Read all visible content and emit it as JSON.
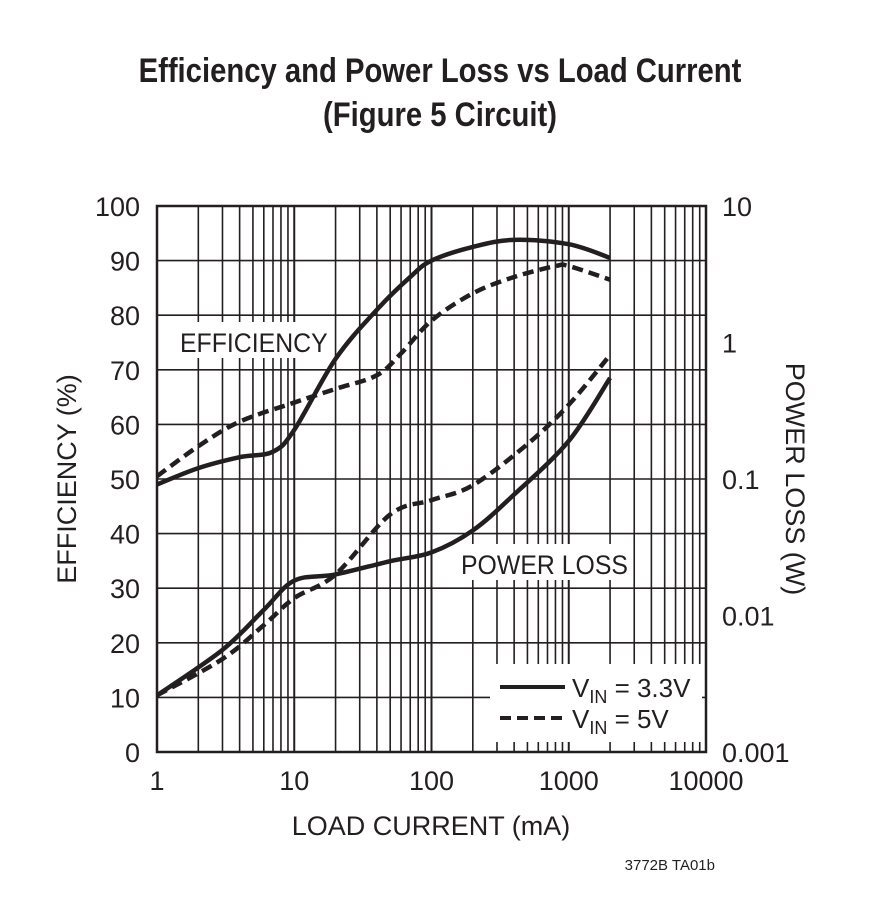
{
  "chart_data": {
    "type": "line",
    "title": "Efficiency and Power Loss vs Load Current",
    "subtitle": "(Figure 5 Circuit)",
    "xlabel": "LOAD CURRENT (mA)",
    "ylabel": "EFFICIENCY (%)",
    "y2label": "POWER LOSS (W)",
    "xscale": "log",
    "xlim": [
      1,
      10000
    ],
    "ylim": [
      0,
      100
    ],
    "y2scale": "log",
    "y2lim": [
      0.001,
      10
    ],
    "grid": true,
    "xticks": [
      "1",
      "10",
      "100",
      "1000",
      "10000"
    ],
    "yticks": [
      "0",
      "10",
      "20",
      "30",
      "40",
      "50",
      "60",
      "70",
      "80",
      "90",
      "100"
    ],
    "y2ticks": [
      "0.001",
      "0.01",
      "0.1",
      "1",
      "10"
    ],
    "annotations": {
      "efficiency": "EFFICIENCY",
      "power_loss": "POWER LOSS"
    },
    "legend_position": "bottom-right",
    "legend": [
      {
        "base": "V",
        "sub": "IN",
        "rest": " = 3.3V",
        "style": "solid"
      },
      {
        "base": "V",
        "sub": "IN",
        "rest": " = 5V",
        "style": "dashed"
      }
    ],
    "series": [
      {
        "group": "efficiency",
        "style": "solid",
        "axis": "left",
        "x": [
          1,
          2,
          4,
          7,
          10,
          20,
          40,
          70,
          100,
          200,
          400,
          1000,
          2000
        ],
        "y": [
          49,
          52,
          54,
          55,
          59,
          72,
          81,
          87,
          90,
          92.5,
          93.8,
          93,
          90.5
        ]
      },
      {
        "group": "efficiency",
        "style": "dashed",
        "axis": "left",
        "x": [
          1,
          2,
          4,
          10,
          20,
          40,
          60,
          100,
          200,
          400,
          800,
          1000,
          2000
        ],
        "y": [
          50.5,
          56,
          60.5,
          64,
          66.5,
          69,
          73,
          79,
          84,
          87,
          89,
          89,
          86.5
        ]
      },
      {
        "group": "power_loss",
        "style": "solid",
        "axis": "right",
        "x": [
          1,
          3,
          6,
          10,
          20,
          50,
          100,
          200,
          400,
          1000,
          2000
        ],
        "y": [
          0.0026,
          0.0056,
          0.011,
          0.018,
          0.02,
          0.025,
          0.029,
          0.042,
          0.077,
          0.19,
          0.55
        ]
      },
      {
        "group": "power_loss",
        "style": "dashed",
        "axis": "right",
        "x": [
          1,
          3,
          6,
          10,
          20,
          50,
          100,
          200,
          500,
          1000,
          2000
        ],
        "y": [
          0.0026,
          0.0048,
          0.0085,
          0.0134,
          0.02,
          0.055,
          0.07,
          0.09,
          0.18,
          0.35,
          0.81
        ]
      }
    ]
  },
  "footer_code": "3772B TA01b"
}
